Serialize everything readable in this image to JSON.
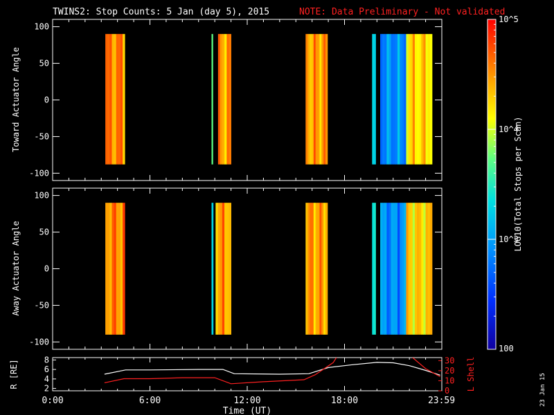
{
  "title": {
    "main": "TWINS2: Stop Counts:  5 Jan (day   5), 2015",
    "note": "NOTE: Data Preliminary - Not validated",
    "note_color": "#ff2020"
  },
  "stamp": "23 Jan 15",
  "colorbar": {
    "label": "LOG10(Total Stops per Scan)",
    "ticks": [
      "100",
      "10^3",
      "10^4",
      "10^5"
    ],
    "range": [
      100,
      100000
    ],
    "scale": "log"
  },
  "chart_data": [
    {
      "type": "heatmap",
      "ylabel": "Toward Actuator Angle",
      "xlim": [
        0,
        24
      ],
      "ylim": [
        -110,
        110
      ],
      "yticks": [
        "100",
        "50",
        "0",
        "-50",
        "-100"
      ],
      "angle_range": [
        -88,
        90
      ],
      "blocks": [
        {
          "t0": 3.25,
          "t1": 4.45,
          "level": 0.85
        },
        {
          "t0": 9.8,
          "t1": 9.88,
          "level": 0.5
        },
        {
          "t0": 10.2,
          "t1": 11.0,
          "level": 0.82
        },
        {
          "t0": 15.6,
          "t1": 16.95,
          "level": 0.82
        },
        {
          "t0": 19.7,
          "t1": 19.92,
          "level": 0.45
        },
        {
          "t0": 20.2,
          "t1": 21.8,
          "level": 0.3
        },
        {
          "t0": 21.8,
          "t1": 23.4,
          "level": 0.75
        }
      ]
    },
    {
      "type": "heatmap",
      "ylabel": "Away Actuator Angle",
      "xlim": [
        0,
        24
      ],
      "ylim": [
        -110,
        110
      ],
      "yticks": [
        "100",
        "50",
        "0",
        "-50",
        "-100"
      ],
      "angle_range": [
        -90,
        90
      ],
      "blocks": [
        {
          "t0": 3.25,
          "t1": 4.45,
          "level": 0.85
        },
        {
          "t0": 9.8,
          "t1": 9.9,
          "level": 0.5
        },
        {
          "t0": 10.05,
          "t1": 11.0,
          "level": 0.82
        },
        {
          "t0": 15.6,
          "t1": 16.95,
          "level": 0.82
        },
        {
          "t0": 19.7,
          "t1": 19.92,
          "level": 0.45
        },
        {
          "t0": 20.2,
          "t1": 21.8,
          "level": 0.3
        },
        {
          "t0": 21.8,
          "t1": 23.4,
          "level": 0.75
        }
      ]
    },
    {
      "type": "line",
      "ylabel": "R [RE]",
      "y2label": "L Shell",
      "xlabel": "Time (UT)",
      "xticks": [
        "0:00",
        "6:00",
        "12:00",
        "18:00",
        "23:59"
      ],
      "xlim": [
        0,
        24
      ],
      "ylim": [
        1.5,
        8.5
      ],
      "yticks": [
        "2",
        "4",
        "6",
        "8"
      ],
      "y2lim": [
        0,
        33
      ],
      "y2ticks": [
        "0",
        "10",
        "20",
        "30"
      ],
      "series": [
        {
          "color": "#ffffff",
          "x": [
            3.2,
            4.5,
            6.0,
            9.0,
            10.5,
            11.2,
            14.0,
            15.8,
            17.0,
            18.5,
            20.0,
            21.0,
            22.0,
            23.0,
            23.9
          ],
          "y": [
            5.0,
            5.9,
            5.9,
            6.0,
            6.0,
            5.1,
            5.0,
            5.1,
            6.4,
            7.0,
            7.5,
            7.4,
            6.8,
            5.8,
            4.8
          ]
        },
        {
          "color": "#ff2020",
          "axis": "right",
          "x": [
            3.2,
            4.4,
            6.0,
            8.0,
            10.0,
            11.0,
            13.0,
            15.5,
            16.2,
            17.3,
            17.5
          ],
          "y": [
            8,
            12,
            12,
            13,
            13,
            7,
            9,
            11,
            16,
            28,
            33
          ]
        },
        {
          "color": "#ff2020",
          "axis": "right",
          "x": [
            22.2,
            23.0,
            23.9
          ],
          "y": [
            33,
            22,
            14
          ]
        }
      ]
    }
  ]
}
